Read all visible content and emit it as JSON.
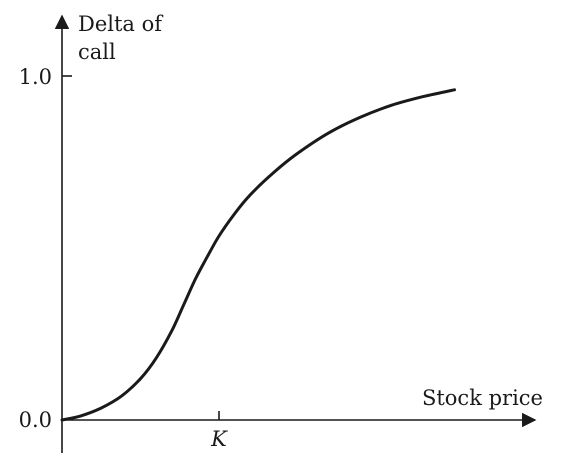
{
  "chart_data": {
    "type": "line",
    "xlabel": "Stock price",
    "ylabel_line1": "Delta of",
    "ylabel_line2": "call",
    "yticks": [
      {
        "value": 0.0,
        "label": "0.0"
      },
      {
        "value": 1.0,
        "label": "1.0"
      }
    ],
    "xticks": [
      {
        "value": 1.0,
        "label": "K"
      }
    ],
    "xlim": [
      0,
      3.0
    ],
    "ylim": [
      0,
      1.0
    ],
    "grid": false,
    "series": [
      {
        "x": [
          0,
          0.12,
          0.25,
          0.38,
          0.5,
          0.6,
          0.7,
          0.78,
          0.85,
          0.92,
          1.0,
          1.1,
          1.2,
          1.35,
          1.5,
          1.7,
          1.9,
          2.1,
          2.3,
          2.5
        ],
        "y": [
          0,
          0.012,
          0.035,
          0.07,
          0.12,
          0.18,
          0.26,
          0.34,
          0.41,
          0.47,
          0.535,
          0.6,
          0.655,
          0.72,
          0.775,
          0.835,
          0.88,
          0.915,
          0.94,
          0.96
        ]
      }
    ]
  }
}
